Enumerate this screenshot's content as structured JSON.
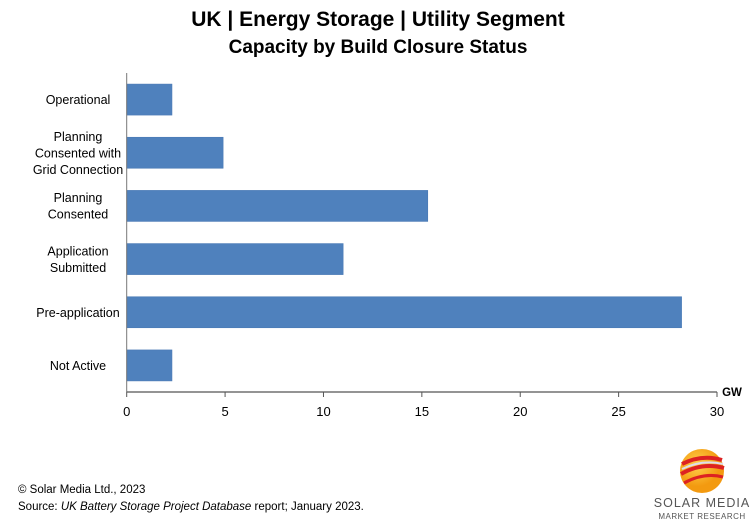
{
  "chart_data": {
    "type": "bar",
    "orientation": "horizontal",
    "title": "UK | Energy Storage | Utility Segment",
    "subtitle": "Capacity by Build Closure Status",
    "categories": [
      [
        "Operational"
      ],
      [
        "Planning",
        "Consented with",
        "Grid Connection"
      ],
      [
        "Planning",
        "Consented"
      ],
      [
        "Application",
        "Submitted"
      ],
      [
        "Pre-application"
      ],
      [
        "Not Active"
      ]
    ],
    "values": [
      2.3,
      4.9,
      15.3,
      11.0,
      28.2,
      2.3
    ],
    "xlabel": "GW",
    "xlim": [
      0,
      30
    ],
    "xticks": [
      "0",
      "5",
      "10",
      "15",
      "20",
      "25",
      "30"
    ],
    "grid": false,
    "bar_color": "#4F81BD"
  },
  "footer": {
    "copyright": "© Solar Media Ltd., 2023",
    "source_prefix": "Source: ",
    "source_title": "UK Battery Storage Project Database",
    "source_suffix": " report; January 2023."
  },
  "logo": {
    "line1": "SOLAR MEDIA",
    "line2": "MARKET RESEARCH"
  }
}
